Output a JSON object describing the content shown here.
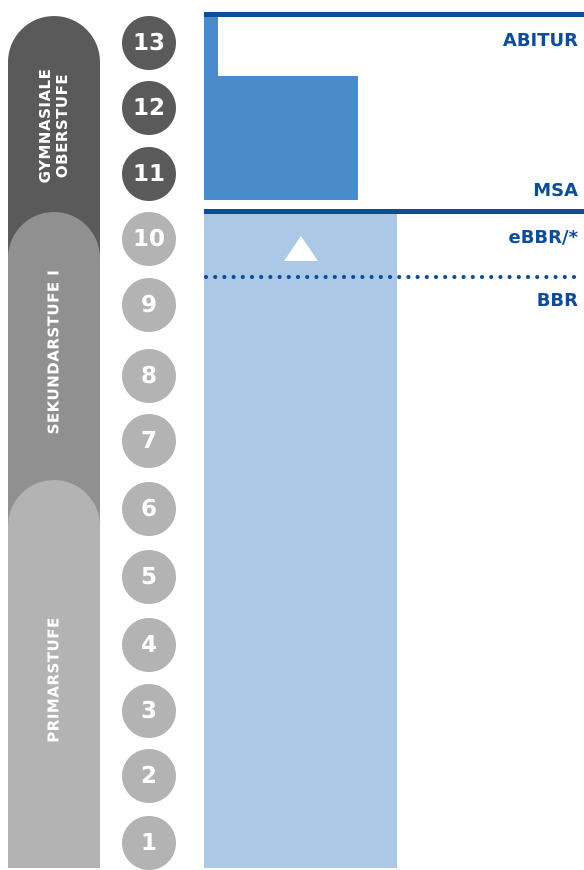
{
  "stages": {
    "oberstufe": {
      "line1": "GYMNASIALE",
      "line2": "OBERSTUFE"
    },
    "sekundarstufe": "SEKUNDARSTUFE I",
    "primarstufe": "PRIMARSTUFE"
  },
  "grades": [
    "13",
    "12",
    "11",
    "10",
    "9",
    "8",
    "7",
    "6",
    "5",
    "4",
    "3",
    "2",
    "1"
  ],
  "qualifications": {
    "abitur": "ABITUR",
    "msa": "MSA",
    "ebbr": "eBBR/*",
    "bbr": "BBR"
  },
  "colors": {
    "dark_gray": "#5a5a5a",
    "mid_gray": "#909090",
    "light_gray": "#b3b3b3",
    "navy": "#0d4d97",
    "blue": "#4a8bcc",
    "light_blue": "#abc8e6"
  }
}
